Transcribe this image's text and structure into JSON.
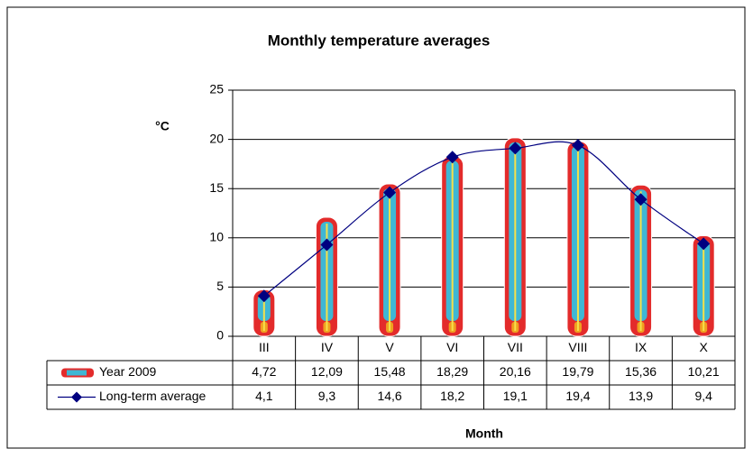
{
  "chart_data": {
    "type": "bar-line",
    "title": "Monthly temperature averages",
    "y_label": "°C",
    "x_label": "Month",
    "categories": [
      "III",
      "IV",
      "V",
      "VI",
      "VII",
      "VIII",
      "IX",
      "X"
    ],
    "series": [
      {
        "name": "Year 2009",
        "type": "bar",
        "color": "#e32b2b",
        "values": [
          4.72,
          12.09,
          15.48,
          18.29,
          20.16,
          19.79,
          15.36,
          10.21
        ],
        "value_labels": [
          "4,72",
          "12,09",
          "15,48",
          "18,29",
          "20,16",
          "19,79",
          "15,36",
          "10,21"
        ]
      },
      {
        "name": "Long-term average",
        "type": "line",
        "color": "#000080",
        "values": [
          4.1,
          9.3,
          14.6,
          18.2,
          19.1,
          19.4,
          13.9,
          9.4
        ],
        "value_labels": [
          "4,1",
          "9,3",
          "14,6",
          "18,2",
          "19,1",
          "19,4",
          "13,9",
          "9,4"
        ]
      }
    ],
    "ylim": [
      0,
      25
    ],
    "yticks": [
      0,
      5,
      10,
      15,
      20,
      25
    ],
    "grid": true
  }
}
